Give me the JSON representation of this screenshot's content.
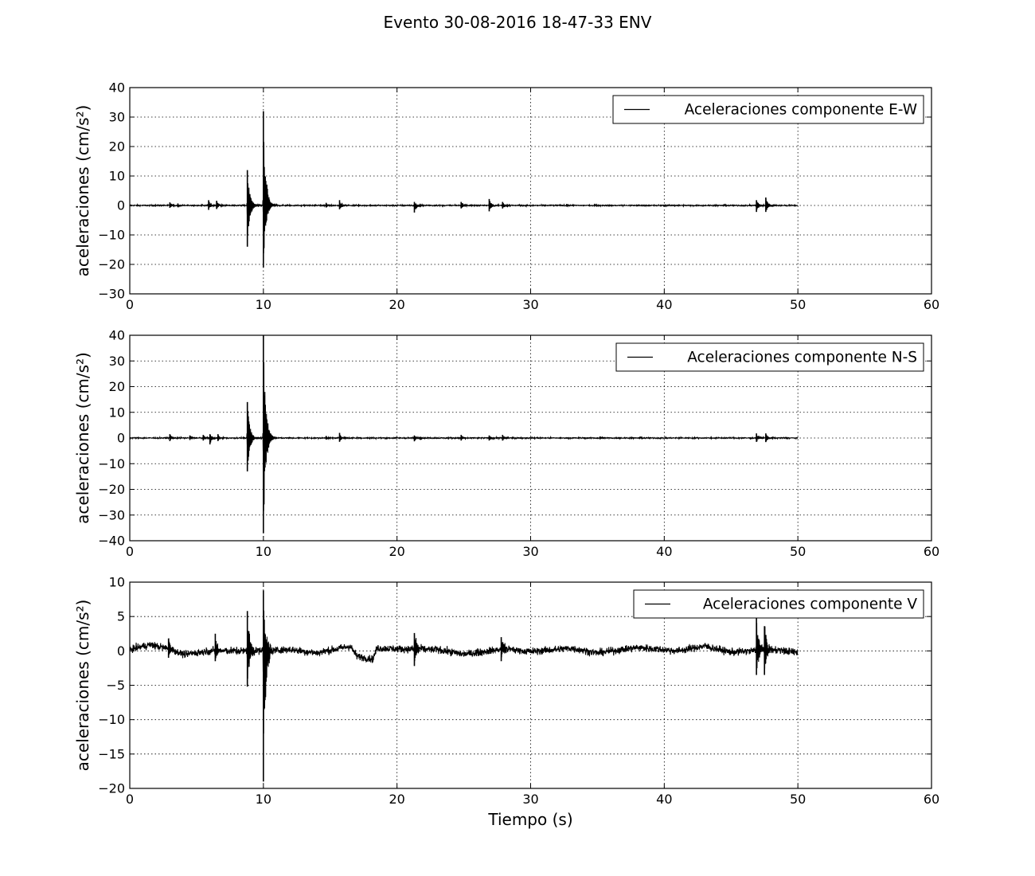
{
  "figure": {
    "title": "Evento 30-08-2016 18-47-33 ENV"
  },
  "chart_data": [
    {
      "type": "line",
      "xlabel": "",
      "ylabel": "aceleraciones (cm/s²)",
      "xlim": [
        0,
        60
      ],
      "ylim": [
        -30,
        40
      ],
      "xticks": [
        0,
        10,
        20,
        30,
        40,
        50,
        60
      ],
      "yticks": [
        -30,
        -20,
        -10,
        0,
        10,
        20,
        30,
        40
      ],
      "grid": true,
      "legend_position": "top-right",
      "line_color": "#000000",
      "series": [
        {
          "name": "Aceleraciones componente E-W",
          "x_range": [
            0,
            50
          ],
          "baseline": 0,
          "noise_amplitude": 0.35,
          "events": [
            {
              "t": 3.0,
              "max": 1.0,
              "min": -0.8
            },
            {
              "t": 3.6,
              "max": 0.7,
              "min": -0.6
            },
            {
              "t": 5.9,
              "max": 1.8,
              "min": -1.5
            },
            {
              "t": 6.5,
              "max": 1.6,
              "min": -1.2
            },
            {
              "t": 8.8,
              "max": 12,
              "min": -14
            },
            {
              "t": 10.0,
              "max": 32,
              "min": -21
            },
            {
              "t": 14.7,
              "max": 0.9,
              "min": -0.7
            },
            {
              "t": 15.7,
              "max": 1.8,
              "min": -1.3
            },
            {
              "t": 21.3,
              "max": 1.2,
              "min": -2.4
            },
            {
              "t": 24.8,
              "max": 1.2,
              "min": -1.0
            },
            {
              "t": 26.9,
              "max": 2.2,
              "min": -2.0
            },
            {
              "t": 27.9,
              "max": 1.2,
              "min": -1.0
            },
            {
              "t": 32.7,
              "max": 0.5,
              "min": -0.4
            },
            {
              "t": 46.9,
              "max": 1.8,
              "min": -2.2
            },
            {
              "t": 47.6,
              "max": 2.7,
              "min": -2.2
            }
          ]
        }
      ]
    },
    {
      "type": "line",
      "xlabel": "",
      "ylabel": "aceleraciones (cm/s²)",
      "xlim": [
        0,
        60
      ],
      "ylim": [
        -40,
        40
      ],
      "xticks": [
        0,
        10,
        20,
        30,
        40,
        50,
        60
      ],
      "yticks": [
        -40,
        -30,
        -20,
        -10,
        0,
        10,
        20,
        30,
        40
      ],
      "grid": true,
      "legend_position": "top-right",
      "line_color": "#000000",
      "series": [
        {
          "name": "Aceleraciones componente N-S",
          "x_range": [
            0,
            50
          ],
          "baseline": 0,
          "noise_amplitude": 0.4,
          "events": [
            {
              "t": 3.0,
              "max": 1.5,
              "min": -1.2
            },
            {
              "t": 4.5,
              "max": 1.0,
              "min": -0.8
            },
            {
              "t": 5.5,
              "max": 1.2,
              "min": -1.0
            },
            {
              "t": 6.0,
              "max": 1.5,
              "min": -2.5
            },
            {
              "t": 6.6,
              "max": 1.5,
              "min": -1.2
            },
            {
              "t": 8.8,
              "max": 14,
              "min": -13
            },
            {
              "t": 10.0,
              "max": 40,
              "min": -37
            },
            {
              "t": 14.7,
              "max": 0.8,
              "min": -0.6
            },
            {
              "t": 15.7,
              "max": 2.0,
              "min": -1.5
            },
            {
              "t": 21.3,
              "max": 1.0,
              "min": -1.3
            },
            {
              "t": 24.8,
              "max": 1.2,
              "min": -1.0
            },
            {
              "t": 26.9,
              "max": 1.0,
              "min": -1.0
            },
            {
              "t": 27.9,
              "max": 1.2,
              "min": -1.0
            },
            {
              "t": 35.2,
              "max": 0.6,
              "min": -0.5
            },
            {
              "t": 46.9,
              "max": 1.8,
              "min": -1.5
            },
            {
              "t": 47.6,
              "max": 1.8,
              "min": -1.6
            }
          ]
        }
      ]
    },
    {
      "type": "line",
      "xlabel": "Tiempo (s)",
      "ylabel": "aceleraciones (cm/s²)",
      "xlim": [
        0,
        60
      ],
      "ylim": [
        -20,
        10
      ],
      "xticks": [
        0,
        10,
        20,
        30,
        40,
        50,
        60
      ],
      "yticks": [
        -20,
        -15,
        -10,
        -5,
        0,
        5,
        10
      ],
      "grid": true,
      "legend_position": "top-right",
      "line_color": "#000000",
      "series": [
        {
          "name": "Aceleraciones componente V",
          "x_range": [
            0,
            50
          ],
          "baseline": 0,
          "noise_amplitude": 0.9,
          "drift": [
            {
              "t": 0,
              "v": 0.2
            },
            {
              "t": 1.5,
              "v": 0.9
            },
            {
              "t": 3.0,
              "v": 0.3
            },
            {
              "t": 4.0,
              "v": -0.5
            },
            {
              "t": 6.0,
              "v": 0.0
            },
            {
              "t": 9.0,
              "v": 0.0
            },
            {
              "t": 12.0,
              "v": 0.2
            },
            {
              "t": 14.0,
              "v": -0.3
            },
            {
              "t": 16.5,
              "v": 0.7
            },
            {
              "t": 17.0,
              "v": -0.8
            },
            {
              "t": 18.2,
              "v": -1.2
            },
            {
              "t": 18.5,
              "v": 0.4
            },
            {
              "t": 20.0,
              "v": 0.3
            },
            {
              "t": 23.0,
              "v": 0.2
            },
            {
              "t": 25.0,
              "v": -0.5
            },
            {
              "t": 28.0,
              "v": 0.3
            },
            {
              "t": 30.0,
              "v": -0.1
            },
            {
              "t": 33.0,
              "v": 0.4
            },
            {
              "t": 35.0,
              "v": -0.3
            },
            {
              "t": 38.0,
              "v": 0.5
            },
            {
              "t": 41.0,
              "v": 0.0
            },
            {
              "t": 43.0,
              "v": 0.7
            },
            {
              "t": 45.0,
              "v": -0.2
            },
            {
              "t": 48.0,
              "v": 0.2
            },
            {
              "t": 50.0,
              "v": -0.2
            }
          ],
          "events": [
            {
              "t": 2.9,
              "max": 1.8,
              "min": -1.0
            },
            {
              "t": 6.4,
              "max": 2.5,
              "min": -1.5
            },
            {
              "t": 8.8,
              "max": 5.8,
              "min": -5.2
            },
            {
              "t": 10.0,
              "max": 8.8,
              "min": -19
            },
            {
              "t": 21.3,
              "max": 2.6,
              "min": -2.2
            },
            {
              "t": 27.8,
              "max": 2.0,
              "min": -1.5
            },
            {
              "t": 46.9,
              "max": 4.8,
              "min": -3.5
            },
            {
              "t": 47.5,
              "max": 3.6,
              "min": -3.5
            }
          ]
        }
      ]
    }
  ]
}
